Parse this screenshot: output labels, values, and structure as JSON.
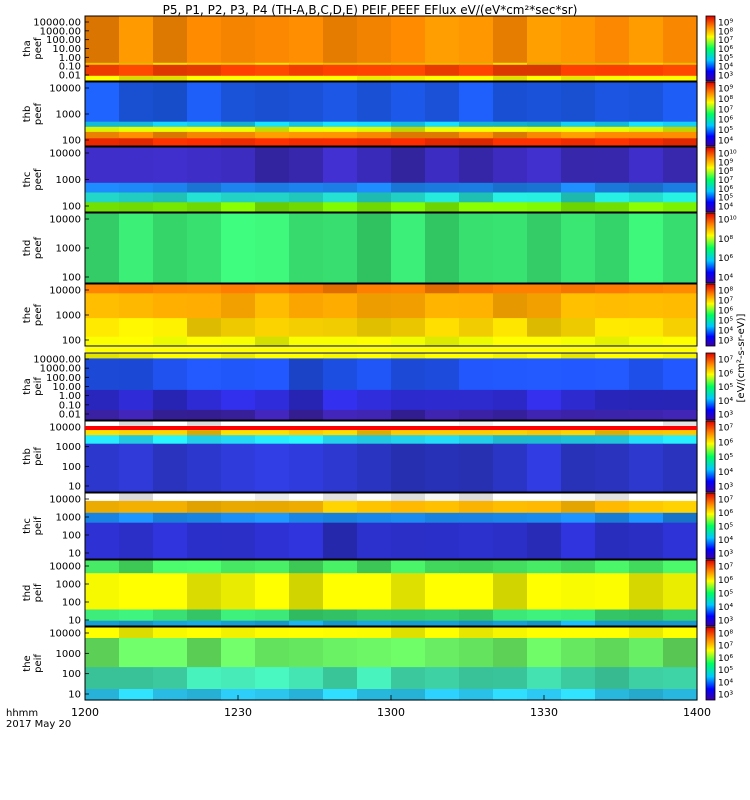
{
  "title": "P5, P1, P2, P3, P4 (TH-A,B,C,D,E) PEIF,PEEF EFlux eV/(eV*cm²*sec*sr)",
  "chart_data": {
    "type": "heatmap",
    "x_ticks": [
      "1200",
      "1230",
      "1300",
      "1330",
      "1400"
    ],
    "x_label_left": "hhmm",
    "date_label": "2017 May 20",
    "colorbar_label": "[eV/(cm²-s-sr-eV)]",
    "panels": [
      {
        "id": "tha-peef",
        "line1": "tha",
        "line2": "peef",
        "yticks": [
          "10000.00",
          "1000.00",
          "100.00",
          "10.00",
          "1.00",
          "0.10",
          "0.01"
        ],
        "cticks": [
          "10⁹",
          "10⁸",
          "10⁷",
          "10⁶",
          "10⁵",
          "10⁴",
          "10³"
        ]
      },
      {
        "id": "thb-peef",
        "line1": "thb",
        "line2": "peef",
        "yticks": [
          "10000",
          "1000",
          "100"
        ],
        "cticks": [
          "10⁹",
          "10⁸",
          "10⁷",
          "10⁶",
          "10⁵",
          "10⁴"
        ]
      },
      {
        "id": "thc-peef",
        "line1": "thc",
        "line2": "peef",
        "yticks": [
          "10000",
          "1000",
          "100"
        ],
        "cticks": [
          "10¹⁰",
          "10⁹",
          "10⁸",
          "10⁷",
          "10⁶",
          "10⁵",
          "10⁴"
        ]
      },
      {
        "id": "thd-peef",
        "line1": "thd",
        "line2": "peef",
        "yticks": [
          "10000",
          "1000",
          "100"
        ],
        "cticks": [
          "10¹⁰",
          "10⁸",
          "10⁶",
          "10⁴"
        ]
      },
      {
        "id": "the-peef",
        "line1": "the",
        "line2": "peef",
        "yticks": [
          "10000",
          "1000",
          "100"
        ],
        "cticks": [
          "10⁸",
          "10⁷",
          "10⁶",
          "10⁵",
          "10⁴",
          "10³"
        ]
      },
      {
        "id": "tha-peif",
        "line1": "tha",
        "line2": "peif",
        "yticks": [
          "10000.00",
          "1000.00",
          "100.00",
          "10.00",
          "1.00",
          "0.10",
          "0.01"
        ],
        "cticks": [
          "10⁷",
          "10⁶",
          "10⁵",
          "10⁴",
          "10³"
        ]
      },
      {
        "id": "thb-peif",
        "line1": "thb",
        "line2": "peif",
        "yticks": [
          "10000",
          "1000",
          "100",
          "10"
        ],
        "cticks": [
          "10⁷",
          "10⁶",
          "10⁵",
          "10⁴",
          "10³"
        ]
      },
      {
        "id": "thc-peif",
        "line1": "thc",
        "line2": "peif",
        "yticks": [
          "10000",
          "1000",
          "100",
          "10"
        ],
        "cticks": [
          "10⁷",
          "10⁶",
          "10⁵",
          "10⁴",
          "10³"
        ]
      },
      {
        "id": "thd-peif",
        "line1": "thd",
        "line2": "peif",
        "yticks": [
          "10000",
          "1000",
          "100",
          "10"
        ],
        "cticks": [
          "10⁷",
          "10⁶",
          "10⁵",
          "10⁴",
          "10³"
        ]
      },
      {
        "id": "the-peif",
        "line1": "the",
        "line2": "peif",
        "yticks": [
          "10000",
          "1000",
          "100",
          "10"
        ],
        "cticks": [
          "10⁸",
          "10⁷",
          "10⁶",
          "10⁵",
          "10⁴",
          "10³"
        ]
      }
    ]
  }
}
